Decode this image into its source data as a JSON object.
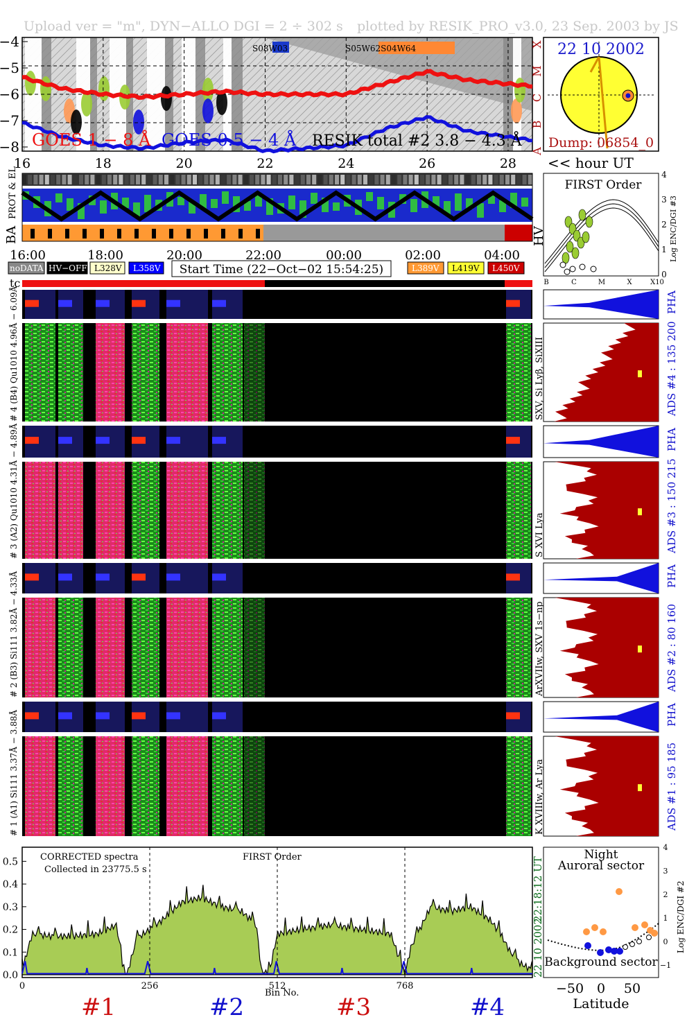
{
  "header": {
    "upload": "Upload ver = \"m\", DYN−ALLO DGI =   2 ÷ 302 s",
    "plotted": "plotted by RESIK_PRO_v3.0, 23 Sep. 2003 by JS"
  },
  "goes": {
    "yticks": [
      "−4",
      "−5",
      "−6",
      "−7",
      "−8"
    ],
    "classes": [
      "X",
      "M",
      "C",
      "B",
      "A"
    ],
    "label_red": "GOES 1 − 8 Å",
    "label_blue": "GOES 0.5 − 4 Å",
    "label_total": "RESIK total #2  3.8 − 4.3 Å",
    "region_a": "S08W03",
    "region_b": "S05W62S04W64",
    "xticks": [
      "16",
      "18",
      "20",
      "22",
      "24",
      "26",
      "28"
    ],
    "x_unit": "<< hour UT"
  },
  "sun": {
    "date": "22 10 2002",
    "dump": "Dump: 06854_0"
  },
  "strips": {
    "prot": "PROT & EL",
    "ba": "BA",
    "hv": "HV"
  },
  "time_axis": [
    "16:00",
    "18:00",
    "20:00",
    "22:00",
    "00:00",
    "02:00",
    "04:00"
  ],
  "legend": {
    "nodata": "noDATA",
    "hvoff": "HV−OFF",
    "l328": "L328V",
    "l358": "L358V",
    "start": "Start Time (22−Oct−02 15:54:25)",
    "l389": "L389V",
    "l419": "L419V",
    "l450": "L450V",
    "colors": {
      "nodata": "#888888",
      "hvoff": "#000000",
      "l328": "#ffffcc",
      "l358": "#0000ff",
      "l389": "#ff9933",
      "l419": "#ffff33",
      "l450": "#cc0000"
    }
  },
  "first_order": {
    "title": "FIRST Order",
    "yticks": [
      "4",
      "3",
      "2",
      "1",
      "0"
    ],
    "ylabel": "Log ENC/DGI #3",
    "xticks": [
      "B",
      "C",
      "M",
      "X",
      "X10"
    ]
  },
  "tc": "tc",
  "channels": [
    {
      "pha_label": "# 4 (B4)  Qu1010  4.96Å  −  6.09Å",
      "ions": "SXV, Si Lyβ, SiXIII",
      "ads": "ADS #4 :   135 200",
      "pha": "PHA"
    },
    {
      "pha_label": "# 3 (A2)  Qu1010  4.31Å  −  4.89Å",
      "ions": "S XVI Lya",
      "ads": "ADS #3 :   150 215",
      "pha": "PHA"
    },
    {
      "pha_label": "# 2 (B3)  Si111  3.82Å  −  4.33Å",
      "ions": "ArXVIIw, SXV 1s−np",
      "ads": "ADS #2 :   80 160",
      "pha": "PHA"
    },
    {
      "pha_label": "# 1 (A1)  Si111  3.37Å  −  3.88Å",
      "ions": "K XVIIIw, Ar Lya",
      "ads": "ADS #1 :   95 185",
      "pha": "PHA"
    }
  ],
  "spectrum": {
    "corrected": "CORRECTED spectra",
    "collected": "Collected in 23775.5 s",
    "order": "FIRST Order",
    "yticks": [
      "0.5",
      "0.4",
      "0.3",
      "0.2",
      "0.1",
      "0.0"
    ],
    "xticks": [
      "0",
      "256",
      "512",
      "768"
    ],
    "xlabel": "Bin No.",
    "ut": "22:18:12 UT",
    "date": "22 10 2002",
    "nums": [
      "#1",
      "#2",
      "#3",
      "#4"
    ]
  },
  "latitude": {
    "night": "Night",
    "auroral": "Auroral sector",
    "background": "Background sector",
    "xticks": [
      "−50",
      "0",
      "50"
    ],
    "xlabel": "Latitude",
    "yticks": [
      "4",
      "3",
      "2",
      "1",
      "0",
      "−1"
    ],
    "ylabel": "Log ENC/DGI #2"
  },
  "chart_data": [
    {
      "type": "line",
      "title": "GOES 1 − 8 Å",
      "x": [
        16,
        17,
        18,
        19,
        20,
        21,
        22,
        23,
        24,
        25,
        26,
        27,
        28.5
      ],
      "y": [
        -5.4,
        -5.8,
        -6.0,
        -6.1,
        -6.0,
        -5.9,
        -6.0,
        -6.0,
        -6.0,
        -5.6,
        -5.2,
        -5.5,
        -5.7
      ],
      "ylim": [
        -8,
        -4
      ],
      "xlim": [
        16,
        28.6
      ]
    },
    {
      "type": "line",
      "title": "GOES 0.5 − 4 Å",
      "x": [
        16,
        17,
        18,
        19,
        20,
        21,
        22,
        23,
        24,
        25,
        26,
        27,
        28.5
      ],
      "y": [
        -7.0,
        -7.5,
        -7.8,
        -7.9,
        -7.7,
        -7.6,
        -8.0,
        -7.9,
        -7.8,
        -7.2,
        -6.8,
        -7.3,
        -7.6
      ],
      "ylim": [
        -8,
        -4
      ],
      "xlim": [
        16,
        28.6
      ]
    },
    {
      "type": "area",
      "title": "CORRECTED spectra",
      "x": [
        0,
        20,
        60,
        100,
        150,
        190,
        200,
        210,
        230,
        256,
        280,
        320,
        360,
        400,
        440,
        470,
        480,
        495,
        512,
        560,
        620,
        680,
        740,
        760,
        768,
        780,
        820,
        860,
        900,
        940,
        960,
        980,
        1000,
        1024
      ],
      "y": [
        0.02,
        0.18,
        0.17,
        0.17,
        0.18,
        0.22,
        0.05,
        0.0,
        0.16,
        0.2,
        0.24,
        0.32,
        0.34,
        0.3,
        0.28,
        0.22,
        0.02,
        0.0,
        0.18,
        0.2,
        0.22,
        0.2,
        0.18,
        0.05,
        0.0,
        0.12,
        0.3,
        0.28,
        0.3,
        0.24,
        0.18,
        0.1,
        0.05,
        0.02
      ],
      "ylim": [
        0,
        0.55
      ],
      "xlim": [
        0,
        1024
      ]
    }
  ]
}
